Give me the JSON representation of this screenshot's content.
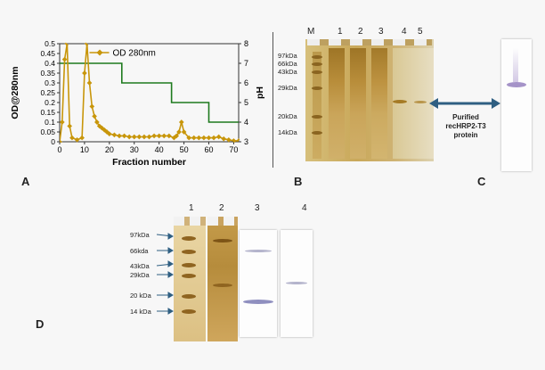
{
  "panels": {
    "A": {
      "letter": "A",
      "x_label": "Fraction number",
      "y_left_label": "OD@280nm",
      "y_right_label": "pH",
      "legend": "OD 280nm",
      "x_ticks": [
        "0",
        "10",
        "20",
        "30",
        "40",
        "50",
        "60",
        "70"
      ],
      "y_left_ticks": [
        "0",
        "0.05",
        "0.1",
        "0.15",
        "0.2",
        "0.25",
        "0.3",
        "0.35",
        "0.4",
        "0.45",
        "0.5"
      ],
      "y_right_ticks": [
        "3",
        "4",
        "5",
        "6",
        "7",
        "8"
      ]
    },
    "B": {
      "letter": "B",
      "lanes": [
        "M",
        "1",
        "2",
        "3",
        "4",
        "5"
      ],
      "markers": [
        "97kDa",
        "66kDa",
        "43kDa",
        "29kDa",
        "20kDa",
        "14kDa"
      ]
    },
    "C": {
      "letter": "C",
      "label_line1": "Purified",
      "label_line2": "recHRP2-T3",
      "label_line3": "protein"
    },
    "D": {
      "letter": "D",
      "lanes": [
        "1",
        "2",
        "3",
        "4"
      ],
      "markers": [
        "97kDa",
        "66kda",
        "43kDa",
        "29kDa",
        "20 kDa",
        "14 kDa"
      ]
    }
  },
  "colors": {
    "od_series": "#c8960a",
    "ph_series": "#1e7a1e",
    "gel_bg": "#c9a85c",
    "arrow": "#2f5f82"
  },
  "chart_data": {
    "type": "line",
    "xlabel": "Fraction number",
    "ylabel": "OD@280nm",
    "y2label": "pH",
    "xlim": [
      0,
      72
    ],
    "ylim": [
      0,
      0.5
    ],
    "y2lim": [
      3,
      8
    ],
    "legend_position": "top-center",
    "series": [
      {
        "name": "OD 280nm",
        "axis": "left",
        "x": [
          0,
          1,
          2,
          3,
          4,
          5,
          7,
          9,
          10,
          11,
          12,
          13,
          14,
          15,
          16,
          17,
          18,
          19,
          20,
          22,
          24,
          26,
          28,
          30,
          32,
          34,
          36,
          38,
          40,
          42,
          44,
          46,
          47,
          48,
          49,
          50,
          52,
          54,
          56,
          58,
          60,
          62,
          64,
          66,
          68,
          70,
          72
        ],
        "y": [
          0.0,
          0.1,
          0.42,
          0.5,
          0.08,
          0.02,
          0.01,
          0.02,
          0.35,
          0.5,
          0.3,
          0.18,
          0.13,
          0.1,
          0.08,
          0.07,
          0.06,
          0.05,
          0.04,
          0.035,
          0.03,
          0.03,
          0.025,
          0.025,
          0.025,
          0.025,
          0.025,
          0.03,
          0.03,
          0.03,
          0.03,
          0.02,
          0.03,
          0.05,
          0.1,
          0.05,
          0.02,
          0.02,
          0.02,
          0.02,
          0.02,
          0.02,
          0.025,
          0.015,
          0.01,
          0.005,
          0.005
        ]
      },
      {
        "name": "pH",
        "axis": "right",
        "x": [
          0,
          25,
          25,
          45,
          45,
          60,
          60,
          72
        ],
        "y": [
          7,
          7,
          6,
          6,
          5,
          5,
          4,
          4
        ]
      }
    ]
  }
}
